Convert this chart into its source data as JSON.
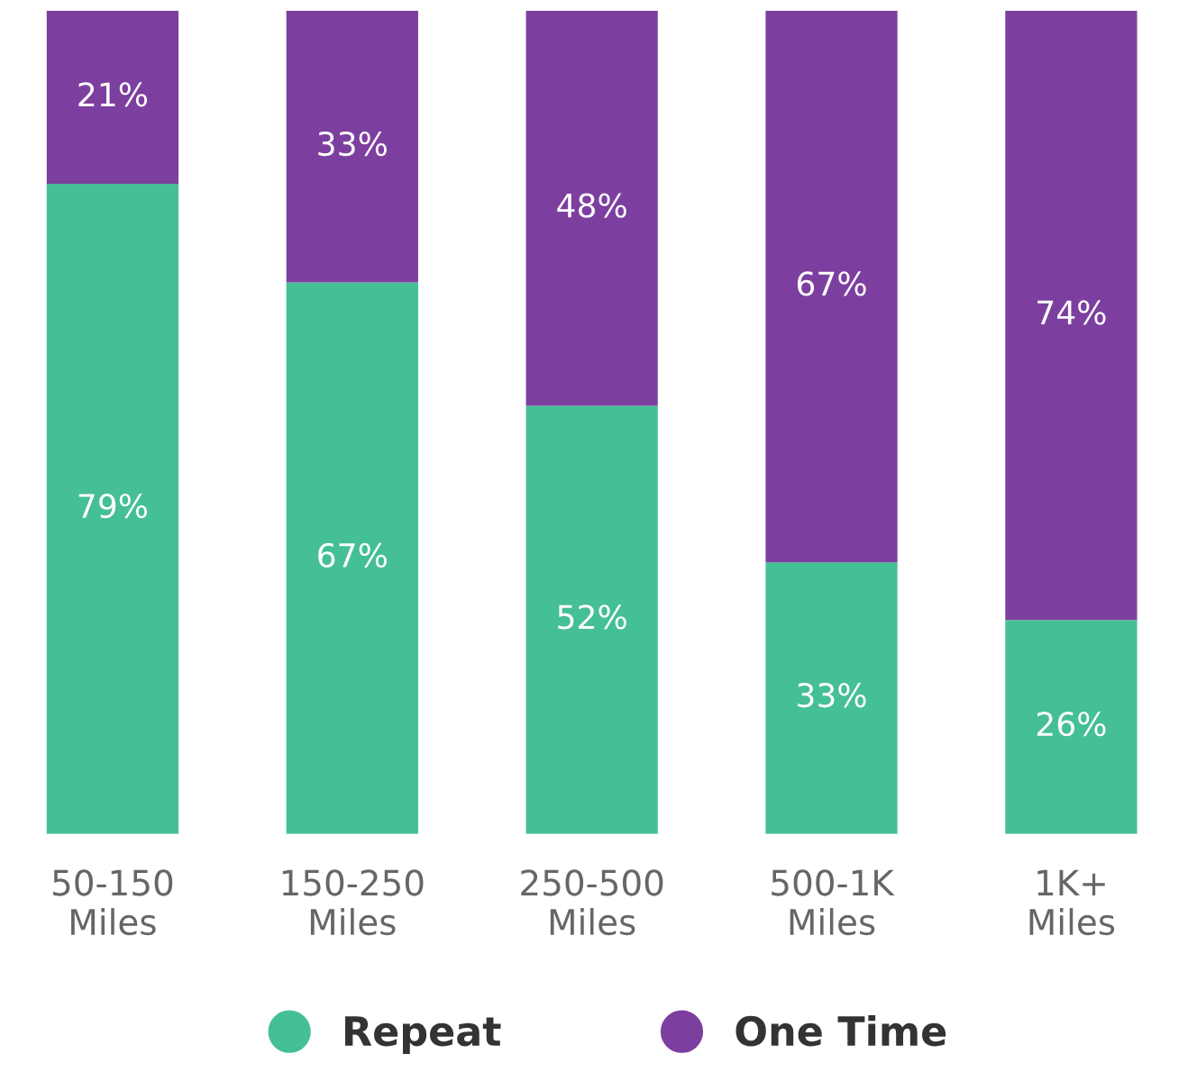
{
  "chart_data": {
    "type": "bar",
    "stacked": true,
    "categories": [
      "50-150\nMiles",
      "150-250\nMiles",
      "250-500\nMiles",
      "500-1K\nMiles",
      "1K+\nMiles"
    ],
    "series": [
      {
        "name": "Repeat",
        "color": "#45bf95",
        "values": [
          79,
          67,
          52,
          33,
          26
        ],
        "value_labels": [
          "79%",
          "67%",
          "52%",
          "33%",
          "26%"
        ]
      },
      {
        "name": "One Time",
        "color": "#7d3f9f",
        "values": [
          21,
          33,
          48,
          67,
          74
        ],
        "value_labels": [
          "21%",
          "33%",
          "48%",
          "67%",
          "74%"
        ]
      }
    ],
    "legend": "bottom",
    "marker": "circle",
    "grid": false
  }
}
